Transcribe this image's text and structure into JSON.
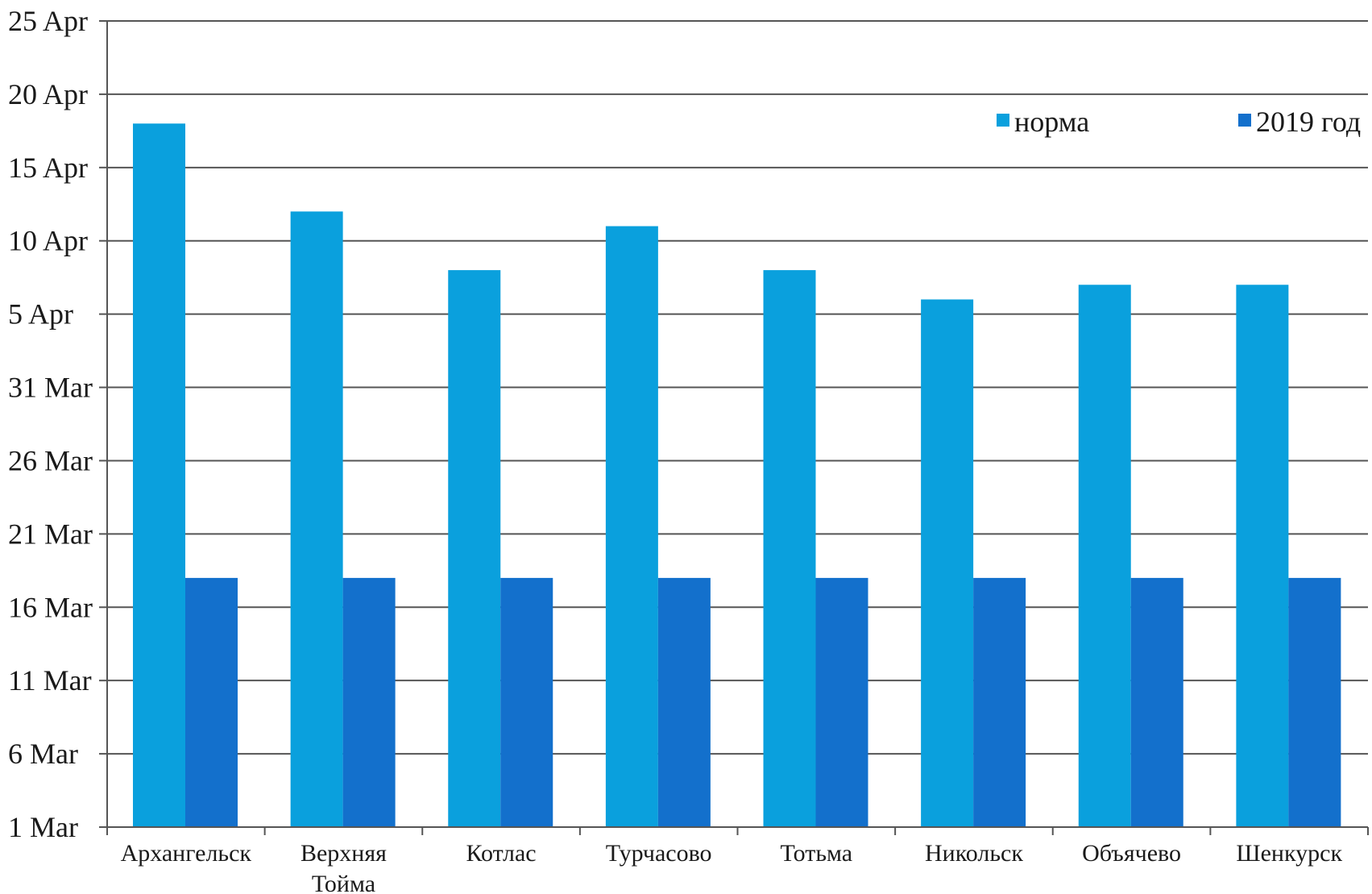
{
  "chart_data": {
    "type": "bar",
    "categories": [
      [
        "Архангельск"
      ],
      [
        "Верхняя",
        "Тойма"
      ],
      [
        "Котлас"
      ],
      [
        "Турчасово"
      ],
      [
        "Тотьма"
      ],
      [
        "Никольск"
      ],
      [
        "Объячево"
      ],
      [
        "Шенкурск"
      ]
    ],
    "series": [
      {
        "name": "норма",
        "color": "#0aa0dd",
        "values": [
          "2019-04-18",
          "2019-04-12",
          "2019-04-08",
          "2019-04-11",
          "2019-04-08",
          "2019-04-06",
          "2019-04-07",
          "2019-04-07"
        ]
      },
      {
        "name": "2019 год",
        "color": "#1370cc",
        "values": [
          "2019-03-18",
          "2019-03-18",
          "2019-03-18",
          "2019-03-18",
          "2019-03-18",
          "2019-03-18",
          "2019-03-18",
          "2019-03-18"
        ]
      }
    ],
    "y_ticks": [
      {
        "value": "2019-03-01",
        "label": "1 Mar"
      },
      {
        "value": "2019-03-06",
        "label": "6 Mar"
      },
      {
        "value": "2019-03-11",
        "label": "11 Mar"
      },
      {
        "value": "2019-03-16",
        "label": "16 Mar"
      },
      {
        "value": "2019-03-21",
        "label": "21 Mar"
      },
      {
        "value": "2019-03-26",
        "label": "26 Mar"
      },
      {
        "value": "2019-03-31",
        "label": "31 Mar"
      },
      {
        "value": "2019-04-05",
        "label": "5 Apr"
      },
      {
        "value": "2019-04-10",
        "label": "10 Apr"
      },
      {
        "value": "2019-04-15",
        "label": "15 Apr"
      },
      {
        "value": "2019-04-20",
        "label": "20 Apr"
      },
      {
        "value": "2019-04-25",
        "label": "25 Apr"
      }
    ],
    "ylim": [
      "2019-03-01",
      "2019-04-25"
    ],
    "grid": true,
    "legend_position": "top-right",
    "title": "",
    "xlabel": "",
    "ylabel": ""
  }
}
